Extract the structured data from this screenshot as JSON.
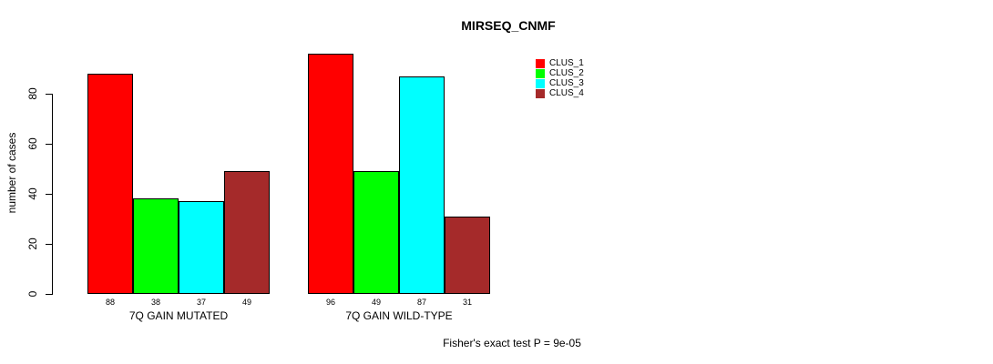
{
  "title": "MIRSEQ_CNMF",
  "footer": "Fisher's exact test P = 9e-05",
  "y_axis": {
    "label": "number of cases",
    "ticks": [
      0,
      20,
      40,
      60,
      80
    ]
  },
  "legend": {
    "items": [
      {
        "label": "CLUS_1",
        "color": "#ff0000"
      },
      {
        "label": "CLUS_2",
        "color": "#00ff00"
      },
      {
        "label": "CLUS_3",
        "color": "#00ffff"
      },
      {
        "label": "CLUS_4",
        "color": "#a52a2a"
      }
    ]
  },
  "chart_data": {
    "type": "bar",
    "title": "MIRSEQ_CNMF",
    "xlabel": "",
    "ylabel": "number of cases",
    "categories": [
      "7Q GAIN MUTATED",
      "7Q GAIN WILD-TYPE"
    ],
    "series": [
      {
        "name": "CLUS_1",
        "color": "#ff0000",
        "values": [
          88,
          96
        ]
      },
      {
        "name": "CLUS_2",
        "color": "#00ff00",
        "values": [
          38,
          49
        ]
      },
      {
        "name": "CLUS_3",
        "color": "#00ffff",
        "values": [
          37,
          87
        ]
      },
      {
        "name": "CLUS_4",
        "color": "#a52a2a",
        "values": [
          49,
          31
        ]
      }
    ],
    "value_labels_shown": true,
    "yticks": [
      0,
      20,
      40,
      60,
      80
    ],
    "ylim": [
      0,
      100
    ],
    "grid": false,
    "legend_position": "top-right-inside",
    "annotation": "Fisher's exact test P = 9e-05"
  }
}
